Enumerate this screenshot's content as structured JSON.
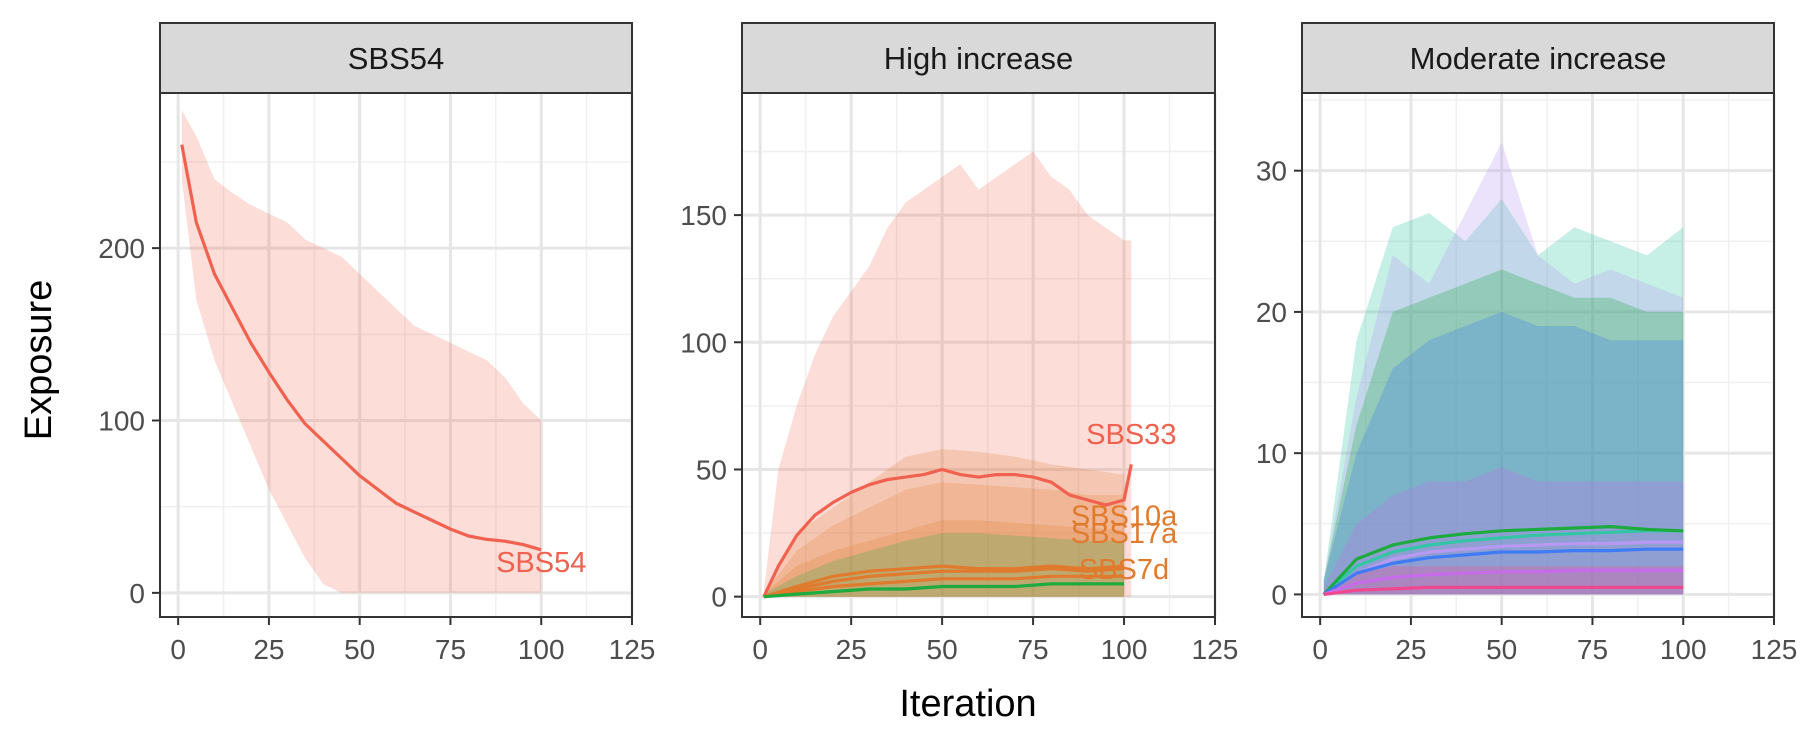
{
  "chart_data": {
    "type": "line",
    "xlabel": "Iteration",
    "ylabel": "Exposure",
    "grid": true,
    "legend": "none",
    "panels": [
      {
        "strip": "SBS54",
        "xlim": [
          -5,
          125
        ],
        "ylim": [
          -14,
          290
        ],
        "xticks": [
          0,
          25,
          50,
          75,
          100,
          125
        ],
        "yticks": [
          0,
          100,
          200
        ],
        "series": [
          {
            "name": "SBS54",
            "color": "#F0624F",
            "label_at": [
              100,
              12
            ],
            "x": [
              1,
              5,
              10,
              15,
              20,
              25,
              30,
              35,
              40,
              45,
              50,
              55,
              60,
              65,
              70,
              75,
              80,
              85,
              90,
              95,
              100
            ],
            "y": [
              260,
              215,
              185,
              165,
              145,
              128,
              112,
              98,
              88,
              78,
              68,
              60,
              52,
              47,
              42,
              37,
              33,
              31,
              30,
              28,
              25
            ],
            "upper": [
              280,
              265,
              240,
              232,
              225,
              220,
              215,
              205,
              200,
              195,
              185,
              175,
              165,
              155,
              150,
              145,
              140,
              135,
              125,
              110,
              100
            ],
            "lower": [
              240,
              170,
              135,
              110,
              85,
              60,
              40,
              20,
              5,
              0,
              0,
              0,
              0,
              0,
              0,
              0,
              0,
              0,
              0,
              0,
              0
            ]
          }
        ]
      },
      {
        "strip": "High increase",
        "xlim": [
          -5,
          125
        ],
        "ylim": [
          -8,
          198
        ],
        "xticks": [
          0,
          25,
          50,
          75,
          100,
          125
        ],
        "yticks": [
          0,
          50,
          100,
          150
        ],
        "series": [
          {
            "name": "SBS33",
            "color": "#F0624F",
            "label_at": [
              102,
              60
            ],
            "x": [
              1,
              5,
              10,
              15,
              20,
              25,
              30,
              35,
              40,
              45,
              50,
              55,
              60,
              65,
              70,
              75,
              80,
              85,
              90,
              95,
              100,
              102
            ],
            "y": [
              0,
              12,
              24,
              32,
              37,
              41,
              44,
              46,
              47,
              48,
              50,
              48,
              47,
              48,
              48,
              47,
              45,
              40,
              38,
              36,
              38,
              52
            ],
            "upper": [
              2,
              50,
              75,
              95,
              110,
              120,
              130,
              145,
              155,
              160,
              165,
              170,
              160,
              165,
              170,
              175,
              165,
              160,
              150,
              145,
              140,
              140
            ],
            "lower": [
              0,
              0,
              0,
              0,
              0,
              0,
              0,
              0,
              0,
              0,
              0,
              0,
              0,
              0,
              0,
              0,
              0,
              0,
              0,
              0,
              0,
              0
            ]
          },
          {
            "name": "SBS10a",
            "color": "#E07B2D",
            "label_at": [
              100,
              28
            ],
            "x": [
              1,
              10,
              20,
              30,
              40,
              50,
              60,
              70,
              80,
              90,
              100
            ],
            "y": [
              0,
              4,
              8,
              10,
              11,
              12,
              11,
              11,
              12,
              11,
              12
            ],
            "upper": [
              1,
              25,
              35,
              45,
              55,
              58,
              57,
              55,
              52,
              50,
              48
            ],
            "lower": [
              0,
              0,
              0,
              0,
              0,
              0,
              0,
              0,
              0,
              0,
              0
            ]
          },
          {
            "name": "SBS17a",
            "color": "#E07B2D",
            "label_at": [
              100,
              21
            ],
            "x": [
              1,
              10,
              20,
              30,
              40,
              50,
              60,
              70,
              80,
              90,
              100
            ],
            "y": [
              0,
              3,
              6,
              8,
              9,
              10,
              10,
              10,
              11,
              10,
              11
            ],
            "upper": [
              1,
              18,
              28,
              35,
              42,
              45,
              44,
              43,
              42,
              40,
              40
            ],
            "lower": [
              0,
              0,
              0,
              0,
              0,
              0,
              0,
              0,
              0,
              0,
              0
            ]
          },
          {
            "name": "SBS7d",
            "color": "#E07B2D",
            "label_at": [
              100,
              7
            ],
            "x": [
              1,
              10,
              20,
              30,
              40,
              50,
              60,
              70,
              80,
              90,
              100
            ],
            "y": [
              0,
              2,
              4,
              5,
              6,
              7,
              7,
              7,
              8,
              8,
              8
            ],
            "upper": [
              1,
              12,
              18,
              22,
              26,
              30,
              30,
              29,
              28,
              27,
              26
            ],
            "lower": [
              0,
              0,
              0,
              0,
              0,
              0,
              0,
              0,
              0,
              0,
              0
            ]
          },
          {
            "name": "",
            "color": "#1DAA3E",
            "label_at": null,
            "x": [
              1,
              10,
              20,
              30,
              40,
              50,
              60,
              70,
              80,
              90,
              100
            ],
            "y": [
              0,
              1,
              2,
              3,
              3,
              4,
              4,
              4,
              5,
              5,
              5
            ],
            "upper": [
              1,
              8,
              14,
              18,
              22,
              25,
              25,
              24,
              23,
              22,
              22
            ],
            "lower": [
              0,
              0,
              0,
              0,
              0,
              0,
              0,
              0,
              0,
              0,
              0
            ]
          }
        ]
      },
      {
        "strip": "Moderate increase",
        "xlim": [
          -5,
          125
        ],
        "ylim": [
          -1.6,
          35.5
        ],
        "xticks": [
          0,
          25,
          50,
          75,
          100,
          125
        ],
        "yticks": [
          0,
          10,
          20,
          30
        ],
        "series": [
          {
            "name": "",
            "color": "#34C5A5",
            "label_at": null,
            "x": [
              1,
              10,
              20,
              30,
              40,
              50,
              60,
              70,
              80,
              90,
              100
            ],
            "y": [
              0,
              2,
              3,
              3.5,
              3.8,
              4,
              4.2,
              4.3,
              4.4,
              4.5,
              4.5
            ],
            "upper": [
              1,
              18,
              26,
              27,
              25,
              28,
              24,
              26,
              25,
              24,
              26
            ],
            "lower": [
              0,
              0,
              0,
              0,
              0,
              0,
              0,
              0,
              0,
              0,
              0
            ]
          },
          {
            "name": "",
            "color": "#B799F2",
            "label_at": null,
            "x": [
              1,
              10,
              20,
              30,
              40,
              50,
              60,
              70,
              80,
              90,
              100
            ],
            "y": [
              0,
              1.5,
              2.5,
              3,
              3.2,
              3.4,
              3.5,
              3.6,
              3.6,
              3.7,
              3.7
            ],
            "upper": [
              1,
              14,
              24,
              22,
              27,
              32,
              24,
              22,
              23,
              22,
              21
            ],
            "lower": [
              0,
              0,
              0,
              0,
              0,
              0,
              0,
              0,
              0,
              0,
              0
            ]
          },
          {
            "name": "",
            "color": "#1DAA3E",
            "label_at": null,
            "x": [
              1,
              10,
              20,
              30,
              40,
              50,
              60,
              70,
              80,
              90,
              100
            ],
            "y": [
              0,
              2.5,
              3.5,
              4,
              4.3,
              4.5,
              4.6,
              4.7,
              4.8,
              4.6,
              4.5
            ],
            "upper": [
              1,
              12,
              20,
              21,
              22,
              23,
              22,
              21,
              21,
              20,
              20
            ],
            "lower": [
              0,
              0,
              0,
              0,
              0,
              0,
              0,
              0,
              0,
              0,
              0
            ]
          },
          {
            "name": "",
            "color": "#3E7BF5",
            "label_at": null,
            "x": [
              1,
              10,
              20,
              30,
              40,
              50,
              60,
              70,
              80,
              90,
              100
            ],
            "y": [
              0,
              1.5,
              2.2,
              2.6,
              2.8,
              3,
              3,
              3.1,
              3.1,
              3.2,
              3.2
            ],
            "upper": [
              1,
              10,
              16,
              18,
              19,
              20,
              19,
              19,
              18,
              18,
              18
            ],
            "lower": [
              0,
              0,
              0,
              0,
              0,
              0,
              0,
              0,
              0,
              0,
              0
            ]
          },
          {
            "name": "",
            "color": "#C86BEB",
            "label_at": null,
            "x": [
              1,
              10,
              20,
              30,
              40,
              50,
              60,
              70,
              80,
              90,
              100
            ],
            "y": [
              0,
              0.8,
              1.2,
              1.4,
              1.5,
              1.6,
              1.6,
              1.7,
              1.7,
              1.7,
              1.7
            ],
            "upper": [
              0.5,
              5,
              7,
              8,
              8,
              9,
              8,
              8,
              8,
              8,
              8
            ],
            "lower": [
              0,
              0,
              0,
              0,
              0,
              0,
              0,
              0,
              0,
              0,
              0
            ]
          },
          {
            "name": "",
            "color": "#F0478F",
            "label_at": null,
            "x": [
              1,
              10,
              20,
              30,
              40,
              50,
              60,
              70,
              80,
              90,
              100
            ],
            "y": [
              0,
              0.3,
              0.4,
              0.5,
              0.5,
              0.5,
              0.5,
              0.5,
              0.5,
              0.5,
              0.5
            ],
            "upper": [
              0.3,
              1.5,
              2,
              2,
              2,
              2,
              2,
              2,
              2,
              2,
              2
            ],
            "lower": [
              0,
              0,
              0,
              0,
              0,
              0,
              0,
              0,
              0,
              0,
              0
            ]
          }
        ]
      }
    ]
  }
}
